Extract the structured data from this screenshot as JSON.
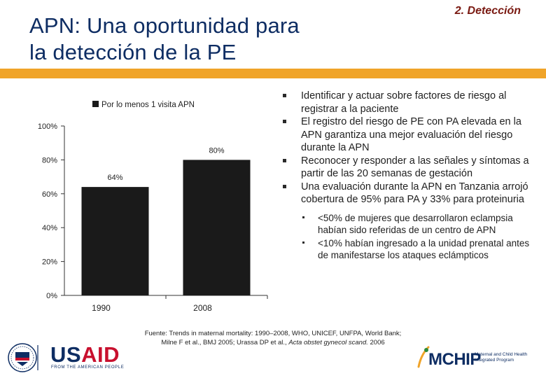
{
  "header": {
    "title_line1": "APN: Una oportunidad para",
    "title_line2": "la detección de la PE",
    "section_tag": "2. Detección",
    "accent_color": "#f0a429",
    "title_color": "#0e2d63"
  },
  "chart_data": {
    "type": "bar",
    "categories": [
      "1990",
      "2008"
    ],
    "series": [
      {
        "name": "Por lo menos 1 visita APN",
        "values": [
          64,
          80
        ],
        "labels": [
          "64%",
          "80%"
        ],
        "color": "#1a1a1a"
      }
    ],
    "ylim": [
      0,
      100
    ],
    "yticks": [
      0,
      20,
      40,
      60,
      80,
      100
    ],
    "ytick_labels": [
      "0%",
      "20%",
      "40%",
      "60%",
      "80%",
      "100%"
    ],
    "grid": false,
    "legend": "top"
  },
  "bullets": {
    "items": [
      "Identificar y actuar sobre factores de riesgo al registrar a la paciente",
      "El registro del riesgo de PE con PA elevada en la APN garantiza una mejor evaluación del riesgo durante la APN",
      "Reconocer y responder a las señales y síntomas a partir de las 20 semanas de gestación",
      "Una evaluación durante la APN en Tanzania arrojó cobertura de 95% para PA y 33% para proteinuria"
    ],
    "sub_items": [
      "<50% de mujeres que desarrollaron eclampsia habían sido referidas de un centro de APN",
      "<10% habían ingresado a la unidad prenatal antes de manifestarse los ataques eclámpticos"
    ]
  },
  "footer": {
    "line1": "Fuente: Trends in maternal mortality: 1990–2008, WHO, UNICEF, UNFPA, World Bank;",
    "line2_prefix": "Milne F et al., BMJ 2005; Urassa DP et al., ",
    "line2_italic": "Acta obstet gynecol scand.",
    "line2_suffix": " 2006"
  },
  "logos": {
    "usaid_us": "US",
    "usaid_aid": "AID",
    "usaid_tagline": "FROM THE AMERICAN PEOPLE",
    "mchip_name": "MCHIP",
    "mchip_sub": "Maternal and Child Health Integrated Program"
  }
}
